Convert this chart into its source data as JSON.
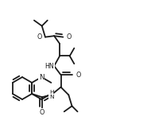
{
  "bg_color": "#ffffff",
  "line_color": "#1a1a1a",
  "line_width": 1.3,
  "text_color": "#1a1a1a",
  "font_size": 5.8,
  "figsize": [
    1.9,
    1.56
  ],
  "dpi": 100,
  "xlim": [
    0,
    190
  ],
  "ylim": [
    0,
    156
  ]
}
